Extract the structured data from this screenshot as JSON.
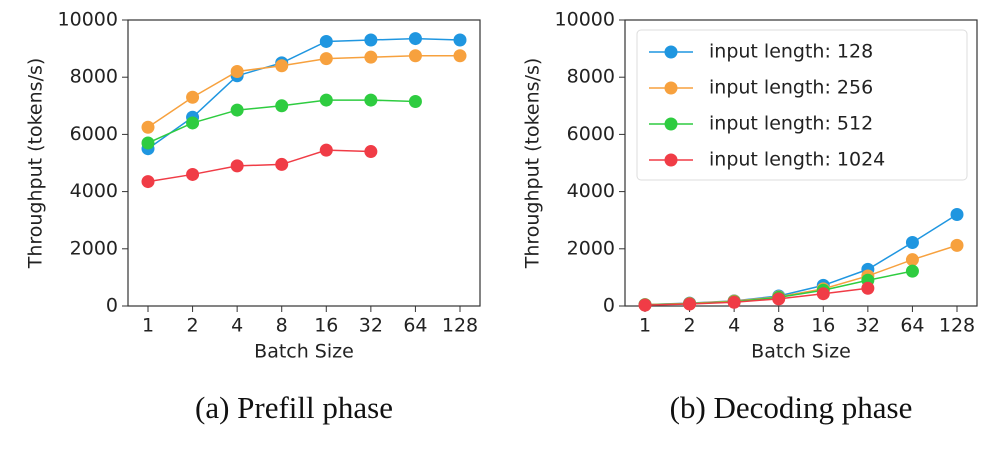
{
  "chart_data": [
    {
      "type": "line",
      "caption": "(a) Prefill phase",
      "xlabel": "Batch Size",
      "ylabel": "Throughput (tokens/s)",
      "categories": [
        "1",
        "2",
        "4",
        "8",
        "16",
        "32",
        "64",
        "128"
      ],
      "ylim": [
        0,
        10000
      ],
      "yticks": [
        0,
        2000,
        4000,
        6000,
        8000,
        10000
      ],
      "series": [
        {
          "color": "#1f96e0",
          "values": [
            5500,
            6600,
            8050,
            8500,
            9250,
            9300,
            9350,
            9300
          ]
        },
        {
          "color": "#f7a13e",
          "values": [
            6250,
            7300,
            8200,
            8400,
            8650,
            8700,
            8750,
            8750
          ]
        },
        {
          "color": "#2ecc40",
          "values": [
            5700,
            6400,
            6850,
            7000,
            7200,
            7200,
            7150,
            null
          ]
        },
        {
          "color": "#f03c46",
          "values": [
            4350,
            4600,
            4900,
            4950,
            5450,
            5400,
            null,
            null
          ]
        }
      ]
    },
    {
      "type": "line",
      "caption": "(b) Decoding phase",
      "xlabel": "Batch Size",
      "ylabel": "Throughput (tokens/s)",
      "categories": [
        "1",
        "2",
        "4",
        "8",
        "16",
        "32",
        "64",
        "128"
      ],
      "ylim": [
        0,
        10000
      ],
      "yticks": [
        0,
        2000,
        4000,
        6000,
        8000,
        10000
      ],
      "legend": "upper left",
      "series": [
        {
          "name": "input length: 128",
          "color": "#1f96e0",
          "values": [
            50,
            100,
            180,
            350,
            720,
            1280,
            2220,
            3200
          ]
        },
        {
          "name": "input length: 256",
          "color": "#f7a13e",
          "values": [
            50,
            90,
            170,
            320,
            600,
            1050,
            1620,
            2120
          ]
        },
        {
          "name": "input length: 512",
          "color": "#2ecc40",
          "values": [
            40,
            80,
            150,
            300,
            550,
            900,
            1220,
            null
          ]
        },
        {
          "name": "input length: 1024",
          "color": "#f03c46",
          "values": [
            30,
            70,
            130,
            250,
            430,
            620,
            null,
            null
          ]
        }
      ]
    }
  ]
}
